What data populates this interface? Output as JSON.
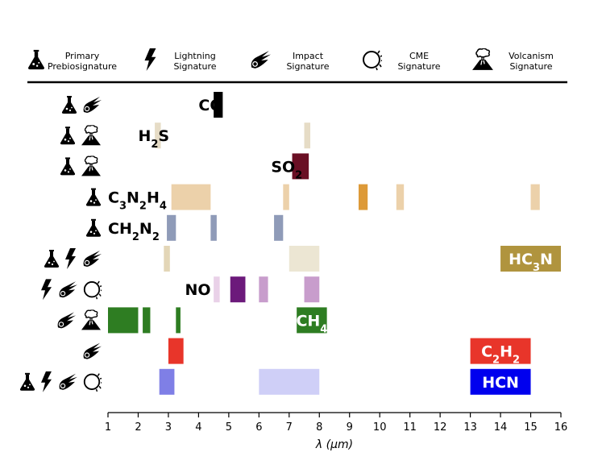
{
  "legend": [
    {
      "key": "primary",
      "line1": "Primary",
      "line2": "Prebiosignature",
      "icon": "flask-icon"
    },
    {
      "key": "lightning",
      "line1": "Lightning",
      "line2": "Signature",
      "icon": "lightning-bolt-icon"
    },
    {
      "key": "impact",
      "line1": "Impact",
      "line2": "Signature",
      "icon": "comet-icon"
    },
    {
      "key": "cme",
      "line1": "CME",
      "line2": "Signature",
      "icon": "cme-ring-icon"
    },
    {
      "key": "volcanism",
      "line1": "Volcanism",
      "line2": "Signature",
      "icon": "volcano-icon"
    }
  ],
  "chart_data": {
    "type": "bar",
    "orientation": "horizontal-range",
    "xlabel": "λ (μm)",
    "xlim": [
      1,
      16
    ],
    "xticks": [
      "1",
      "2",
      "3",
      "4",
      "5",
      "6",
      "7",
      "8",
      "9",
      "10",
      "11",
      "12",
      "13",
      "14",
      "15",
      "16"
    ],
    "grid": false,
    "legend_position": "top",
    "series": [
      {
        "name": "CO",
        "label_html": "CO",
        "label_mode": "plain",
        "label_at": 4.0,
        "icons": [
          "primary",
          "impact"
        ],
        "bands": [
          {
            "start": 4.5,
            "end": 4.8,
            "color": "#000000",
            "alpha": 1.0
          }
        ]
      },
      {
        "name": "H2S",
        "label_html": "H<tspan baseline-shift=\"sub\" font-size=\"13\">2</tspan>S",
        "label_mode": "plain",
        "label_at": 2.0,
        "icons": [
          "primary",
          "volcanism"
        ],
        "bands": [
          {
            "start": 2.55,
            "end": 2.75,
            "color": "#e6dcc6",
            "alpha": 1.0
          },
          {
            "start": 7.5,
            "end": 7.7,
            "color": "#e6dcc6",
            "alpha": 1.0
          }
        ]
      },
      {
        "name": "SO2",
        "label_html": "SO<tspan baseline-shift=\"sub\" font-size=\"13\">2</tspan>",
        "label_mode": "plain",
        "label_at": 6.4,
        "icons": [
          "primary",
          "volcanism"
        ],
        "bands": [
          {
            "start": 7.1,
            "end": 7.65,
            "color": "#6a0f24",
            "alpha": 1.0
          }
        ]
      },
      {
        "name": "C3N2H4",
        "label_html": "C<tspan baseline-shift=\"sub\" font-size=\"13\">3</tspan><tspan baseline-shift=\"0\">N</tspan><tspan baseline-shift=\"sub\" font-size=\"13\">2</tspan><tspan baseline-shift=\"0\">H</tspan><tspan baseline-shift=\"sub\" font-size=\"13\">4</tspan>",
        "label_mode": "plain",
        "label_at": 1.0,
        "icons": [
          "primary"
        ],
        "bands": [
          {
            "start": 3.1,
            "end": 4.4,
            "color": "#ecd1aa",
            "alpha": 1.0
          },
          {
            "start": 6.8,
            "end": 7.0,
            "color": "#ecd1aa",
            "alpha": 1.0
          },
          {
            "start": 9.3,
            "end": 9.6,
            "color": "#dd9a38",
            "alpha": 1.0
          },
          {
            "start": 10.55,
            "end": 10.8,
            "color": "#ecd1aa",
            "alpha": 1.0
          },
          {
            "start": 15.0,
            "end": 15.3,
            "color": "#ecd1aa",
            "alpha": 1.0
          }
        ]
      },
      {
        "name": "CH2N2",
        "label_html": "CH<tspan baseline-shift=\"sub\" font-size=\"13\">2</tspan><tspan baseline-shift=\"0\">N</tspan><tspan baseline-shift=\"sub\" font-size=\"13\">2</tspan>",
        "label_mode": "plain",
        "label_at": 1.0,
        "icons": [
          "primary"
        ],
        "bands": [
          {
            "start": 2.95,
            "end": 3.25,
            "color": "#8f9bb8",
            "alpha": 1.0
          },
          {
            "start": 4.4,
            "end": 4.6,
            "color": "#8f9bb8",
            "alpha": 1.0
          },
          {
            "start": 6.5,
            "end": 6.8,
            "color": "#8f9bb8",
            "alpha": 1.0
          }
        ]
      },
      {
        "name": "HC3N",
        "label_html": "HC<tspan baseline-shift=\"sub\" font-size=\"13\">3</tspan><tspan baseline-shift=\"0\">N</tspan>",
        "label_mode": "box",
        "label_color": "#ffffff",
        "icons": [
          "primary",
          "lightning",
          "impact"
        ],
        "bands": [
          {
            "start": 2.85,
            "end": 3.05,
            "color": "#e3d6b7",
            "alpha": 1.0
          },
          {
            "start": 7.0,
            "end": 8.0,
            "color": "#ece6d3",
            "alpha": 1.0
          },
          {
            "start": 14.0,
            "end": 16.0,
            "color": "#b0943e",
            "alpha": 1.0,
            "labelled": true
          }
        ]
      },
      {
        "name": "NO",
        "label_html": "NO",
        "label_mode": "plain",
        "label_at": 3.55,
        "icons": [
          "lightning",
          "impact",
          "cme"
        ],
        "bands": [
          {
            "start": 4.5,
            "end": 4.7,
            "color": "#e9d1e8",
            "alpha": 1.0
          },
          {
            "start": 5.05,
            "end": 5.55,
            "color": "#6c1a7b",
            "alpha": 1.0
          },
          {
            "start": 6.0,
            "end": 6.3,
            "color": "#c89dcc",
            "alpha": 1.0
          },
          {
            "start": 7.5,
            "end": 8.0,
            "color": "#c89dcc",
            "alpha": 1.0
          }
        ]
      },
      {
        "name": "CH4",
        "label_html": "CH<tspan baseline-shift=\"sub\" font-size=\"13\">4</tspan>",
        "label_mode": "box",
        "label_color": "#ffffff",
        "icons": [
          "impact",
          "volcanism"
        ],
        "bands": [
          {
            "start": 1.0,
            "end": 2.0,
            "color": "#2e7d22",
            "alpha": 1.0
          },
          {
            "start": 2.15,
            "end": 2.4,
            "color": "#2e7d22",
            "alpha": 1.0
          },
          {
            "start": 3.25,
            "end": 3.4,
            "color": "#2e7d22",
            "alpha": 1.0
          },
          {
            "start": 7.25,
            "end": 8.25,
            "color": "#2e7d22",
            "alpha": 1.0,
            "labelled": true
          }
        ]
      },
      {
        "name": "C2H2",
        "label_html": "C<tspan baseline-shift=\"sub\" font-size=\"13\">2</tspan><tspan baseline-shift=\"0\">H</tspan><tspan baseline-shift=\"sub\" font-size=\"13\">2</tspan>",
        "label_mode": "box",
        "label_color": "#ffffff",
        "icons": [
          "impact"
        ],
        "bands": [
          {
            "start": 3.0,
            "end": 3.5,
            "color": "#e8352a",
            "alpha": 1.0
          },
          {
            "start": 13.0,
            "end": 15.0,
            "color": "#e8352a",
            "alpha": 1.0,
            "labelled": true
          }
        ]
      },
      {
        "name": "HCN",
        "label_html": "HCN",
        "label_mode": "box",
        "label_color": "#ffffff",
        "icons": [
          "primary",
          "lightning",
          "impact",
          "cme"
        ],
        "bands": [
          {
            "start": 2.7,
            "end": 3.2,
            "color": "#7f7fe6",
            "alpha": 1.0
          },
          {
            "start": 6.0,
            "end": 8.0,
            "color": "#cfcff7",
            "alpha": 1.0
          },
          {
            "start": 13.0,
            "end": 15.0,
            "color": "#0000ee",
            "alpha": 1.0,
            "labelled": true
          }
        ]
      }
    ]
  }
}
